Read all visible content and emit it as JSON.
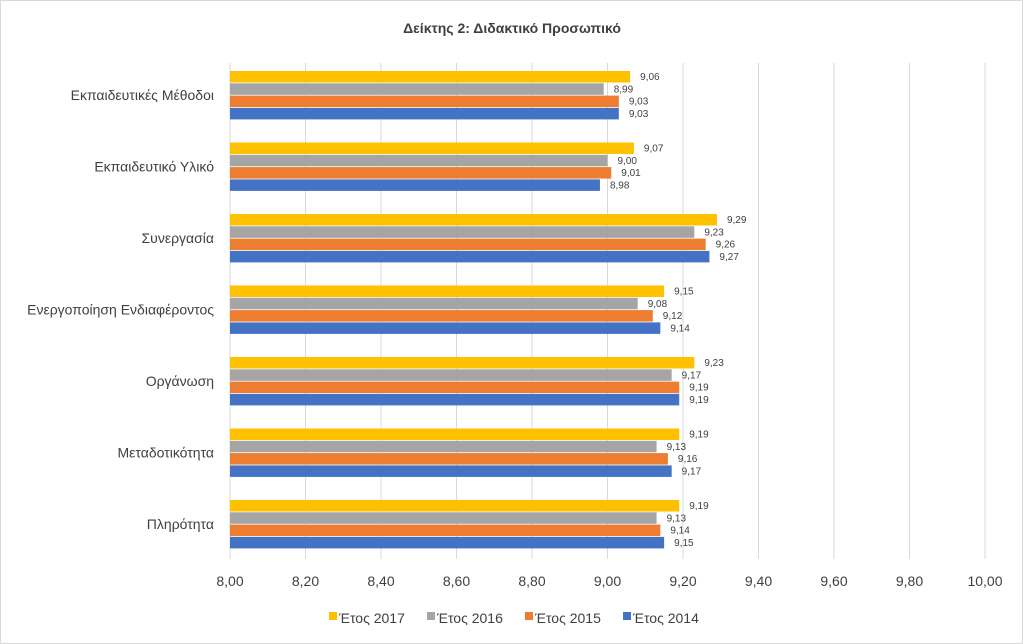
{
  "chart_data": {
    "type": "bar",
    "orientation": "horizontal",
    "title": "Δείκτης 2: Διδακτικό Προσωπικό",
    "categories": [
      "Εκπαιδευτικές Μέθοδοι",
      "Εκπαιδευτικό Υλικό",
      "Συνεργασία",
      "Ενεργοποίηση Ενδιαφέροντος",
      "Οργάνωση",
      "Μεταδοτικότητα",
      "Πληρότητα"
    ],
    "series": [
      {
        "name": "Έτος 2017",
        "color": "#ffc000",
        "values": [
          9.06,
          9.07,
          9.29,
          9.15,
          9.23,
          9.19,
          9.19
        ],
        "labels": [
          "9,06",
          "9,07",
          "9,29",
          "9,15",
          "9,23",
          "9,19",
          "9,19"
        ]
      },
      {
        "name": "Έτος 2016",
        "color": "#a5a5a5",
        "values": [
          8.99,
          9.0,
          9.23,
          9.08,
          9.17,
          9.13,
          9.13
        ],
        "labels": [
          "8,99",
          "9,00",
          "9,23",
          "9,08",
          "9,17",
          "9,13",
          "9,13"
        ]
      },
      {
        "name": "Έτος 2015",
        "color": "#ed7d31",
        "values": [
          9.03,
          9.01,
          9.26,
          9.12,
          9.19,
          9.16,
          9.14
        ],
        "labels": [
          "9,03",
          "9,01",
          "9,26",
          "9,12",
          "9,19",
          "9,16",
          "9,14"
        ]
      },
      {
        "name": "Έτος 2014",
        "color": "#4472c4",
        "values": [
          9.03,
          8.98,
          9.27,
          9.14,
          9.19,
          9.17,
          9.15
        ],
        "labels": [
          "9,03",
          "8,98",
          "9,27",
          "9,14",
          "9,19",
          "9,17",
          "9,15"
        ]
      }
    ],
    "xlim": [
      8.0,
      10.0
    ],
    "xticks": [
      8.0,
      8.2,
      8.4,
      8.6,
      8.8,
      9.0,
      9.2,
      9.4,
      9.6,
      9.8,
      10.0
    ],
    "xtick_labels": [
      "8,00",
      "8,20",
      "8,40",
      "8,60",
      "8,80",
      "9,00",
      "9,20",
      "9,40",
      "9,60",
      "9,80",
      "10,00"
    ],
    "grid": "vertical",
    "legend_position": "bottom-center",
    "legend_order": [
      "Έτος 2017",
      "Έτος 2016",
      "Έτος 2015",
      "Έτος 2014"
    ]
  }
}
